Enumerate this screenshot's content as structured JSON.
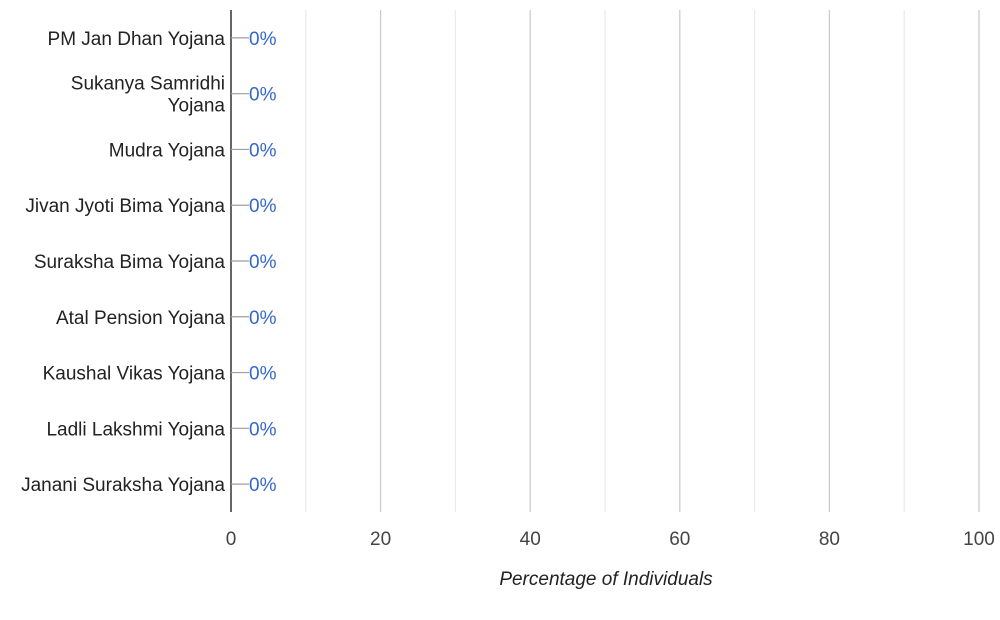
{
  "chart_data": {
    "type": "bar",
    "orientation": "horizontal",
    "categories": [
      "PM Jan Dhan Yojana",
      "Sukanya Samridhi Yojana",
      "Mudra Yojana",
      "Jivan Jyoti Bima Yojana",
      "Suraksha Bima Yojana",
      "Atal Pension Yojana",
      "Kaushal Vikas Yojana",
      "Ladli Lakshmi Yojana",
      "Janani Suraksha Yojana"
    ],
    "values": [
      0,
      0,
      0,
      0,
      0,
      0,
      0,
      0,
      0
    ],
    "data_labels": [
      "0%",
      "0%",
      "0%",
      "0%",
      "0%",
      "0%",
      "0%",
      "0%",
      "0%"
    ],
    "title": "",
    "xlabel": "Percentage of Individuals",
    "ylabel": "",
    "xlim": [
      0,
      100
    ],
    "x_ticks": [
      "0",
      "20",
      "40",
      "60",
      "80",
      "100"
    ],
    "grid": true,
    "legend": "none",
    "colors": {
      "data_label": "#3366cc",
      "major_grid": "#cccccc",
      "minor_grid": "#ebebeb",
      "axis": "#333333",
      "text": "#222222"
    }
  }
}
